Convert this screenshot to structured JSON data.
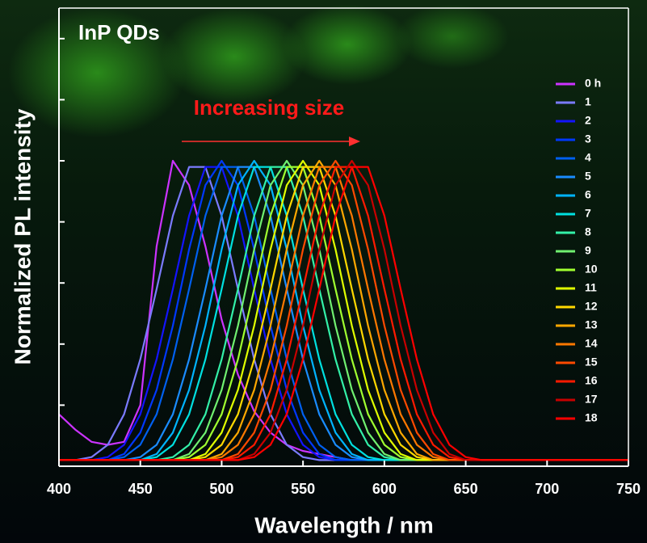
{
  "chart_data": {
    "type": "line",
    "title": "InP QDs",
    "annotation": "Increasing size",
    "x_label": "Wavelength / nm",
    "y_label": "Normalized PL intensity",
    "xlim": [
      400,
      750
    ],
    "xticks": [
      400,
      450,
      500,
      550,
      600,
      650,
      700,
      750
    ],
    "ylim": [
      0,
      1.5
    ],
    "yticks": [
      0,
      0.2,
      0.4,
      0.6,
      0.8,
      1.0,
      1.2,
      1.4
    ],
    "x": [
      400,
      410,
      420,
      430,
      440,
      450,
      460,
      470,
      480,
      490,
      500,
      510,
      520,
      530,
      540,
      550,
      560,
      570,
      580,
      590,
      600,
      610,
      620,
      630,
      640,
      650,
      660,
      670,
      680,
      690,
      700,
      710,
      720,
      730,
      740,
      750
    ],
    "series": [
      {
        "name": "0 h",
        "color": "#cc33ff",
        "values": [
          0.17,
          0.12,
          0.08,
          0.07,
          0.08,
          0.2,
          0.72,
          1,
          0.92,
          0.72,
          0.48,
          0.3,
          0.18,
          0.11,
          0.07,
          0.05,
          0.04,
          0.03,
          0.02,
          0.02,
          0.02,
          0.02,
          0.02,
          0.02,
          0.02,
          0.02,
          0.02,
          0.02,
          0.02,
          0.02,
          0.02,
          0.02,
          0.02,
          0.02,
          0.02,
          0.02
        ]
      },
      {
        "name": "1",
        "color": "#7b7bff",
        "values": [
          0.02,
          0.02,
          0.03,
          0.07,
          0.17,
          0.35,
          0.58,
          0.82,
          0.98,
          0.98,
          0.82,
          0.58,
          0.35,
          0.17,
          0.07,
          0.03,
          0.02,
          0.02,
          0.02,
          0.02,
          0.02,
          0.02,
          0.02,
          0.02,
          0.02,
          0.02,
          0.02,
          0.02,
          0.02,
          0.02,
          0.02,
          0.02,
          0.02,
          0.02,
          0.02,
          0.02
        ]
      },
      {
        "name": "2",
        "color": "#1414ff",
        "values": [
          0.02,
          0.02,
          0.02,
          0.03,
          0.07,
          0.17,
          0.35,
          0.58,
          0.82,
          0.98,
          0.98,
          0.82,
          0.58,
          0.35,
          0.17,
          0.07,
          0.03,
          0.02,
          0.02,
          0.02,
          0.02,
          0.02,
          0.02,
          0.02,
          0.02,
          0.02,
          0.02,
          0.02,
          0.02,
          0.02,
          0.02,
          0.02,
          0.02,
          0.02,
          0.02,
          0.02
        ]
      },
      {
        "name": "3",
        "color": "#0038ff",
        "values": [
          0.02,
          0.02,
          0.02,
          0.02,
          0.04,
          0.11,
          0.25,
          0.46,
          0.71,
          0.92,
          1,
          0.92,
          0.71,
          0.46,
          0.25,
          0.11,
          0.04,
          0.02,
          0.02,
          0.02,
          0.02,
          0.02,
          0.02,
          0.02,
          0.02,
          0.02,
          0.02,
          0.02,
          0.02,
          0.02,
          0.02,
          0.02,
          0.02,
          0.02,
          0.02,
          0.02
        ]
      },
      {
        "name": "4",
        "color": "#0060f0",
        "values": [
          0.02,
          0.02,
          0.02,
          0.02,
          0.03,
          0.07,
          0.17,
          0.35,
          0.58,
          0.82,
          0.98,
          0.98,
          0.82,
          0.58,
          0.35,
          0.17,
          0.07,
          0.03,
          0.02,
          0.02,
          0.02,
          0.02,
          0.02,
          0.02,
          0.02,
          0.02,
          0.02,
          0.02,
          0.02,
          0.02,
          0.02,
          0.02,
          0.02,
          0.02,
          0.02,
          0.02
        ]
      },
      {
        "name": "5",
        "color": "#1a8cff",
        "values": [
          0.02,
          0.02,
          0.02,
          0.02,
          0.02,
          0.03,
          0.07,
          0.17,
          0.35,
          0.58,
          0.82,
          0.98,
          0.98,
          0.82,
          0.58,
          0.35,
          0.17,
          0.07,
          0.03,
          0.02,
          0.02,
          0.02,
          0.02,
          0.02,
          0.02,
          0.02,
          0.02,
          0.02,
          0.02,
          0.02,
          0.02,
          0.02,
          0.02,
          0.02,
          0.02,
          0.02
        ]
      },
      {
        "name": "6",
        "color": "#00b4ff",
        "values": [
          0.02,
          0.02,
          0.02,
          0.02,
          0.02,
          0.02,
          0.04,
          0.11,
          0.25,
          0.46,
          0.71,
          0.92,
          1,
          0.92,
          0.71,
          0.46,
          0.25,
          0.11,
          0.04,
          0.02,
          0.02,
          0.02,
          0.02,
          0.02,
          0.02,
          0.02,
          0.02,
          0.02,
          0.02,
          0.02,
          0.02,
          0.02,
          0.02,
          0.02,
          0.02,
          0.02
        ]
      },
      {
        "name": "7",
        "color": "#00e0e0",
        "values": [
          0.02,
          0.02,
          0.02,
          0.02,
          0.02,
          0.02,
          0.03,
          0.07,
          0.17,
          0.35,
          0.58,
          0.82,
          0.98,
          0.98,
          0.82,
          0.58,
          0.35,
          0.17,
          0.07,
          0.03,
          0.02,
          0.02,
          0.02,
          0.02,
          0.02,
          0.02,
          0.02,
          0.02,
          0.02,
          0.02,
          0.02,
          0.02,
          0.02,
          0.02,
          0.02,
          0.02
        ]
      },
      {
        "name": "8",
        "color": "#33f0a8",
        "values": [
          0.02,
          0.02,
          0.02,
          0.02,
          0.02,
          0.02,
          0.02,
          0.03,
          0.07,
          0.17,
          0.35,
          0.58,
          0.82,
          0.98,
          0.98,
          0.82,
          0.58,
          0.35,
          0.17,
          0.07,
          0.03,
          0.02,
          0.02,
          0.02,
          0.02,
          0.02,
          0.02,
          0.02,
          0.02,
          0.02,
          0.02,
          0.02,
          0.02,
          0.02,
          0.02,
          0.02
        ]
      },
      {
        "name": "9",
        "color": "#70f070",
        "values": [
          0.02,
          0.02,
          0.02,
          0.02,
          0.02,
          0.02,
          0.02,
          0.02,
          0.04,
          0.11,
          0.25,
          0.46,
          0.71,
          0.92,
          1,
          0.92,
          0.71,
          0.46,
          0.25,
          0.11,
          0.04,
          0.02,
          0.02,
          0.02,
          0.02,
          0.02,
          0.02,
          0.02,
          0.02,
          0.02,
          0.02,
          0.02,
          0.02,
          0.02,
          0.02,
          0.02
        ]
      },
      {
        "name": "10",
        "color": "#a0ff30",
        "values": [
          0.02,
          0.02,
          0.02,
          0.02,
          0.02,
          0.02,
          0.02,
          0.02,
          0.03,
          0.07,
          0.17,
          0.35,
          0.58,
          0.82,
          0.98,
          0.98,
          0.82,
          0.58,
          0.35,
          0.17,
          0.07,
          0.03,
          0.02,
          0.02,
          0.02,
          0.02,
          0.02,
          0.02,
          0.02,
          0.02,
          0.02,
          0.02,
          0.02,
          0.02,
          0.02,
          0.02
        ]
      },
      {
        "name": "11",
        "color": "#e0ff00",
        "values": [
          0.02,
          0.02,
          0.02,
          0.02,
          0.02,
          0.02,
          0.02,
          0.02,
          0.02,
          0.04,
          0.11,
          0.25,
          0.46,
          0.71,
          0.92,
          1,
          0.92,
          0.71,
          0.46,
          0.25,
          0.11,
          0.04,
          0.02,
          0.02,
          0.02,
          0.02,
          0.02,
          0.02,
          0.02,
          0.02,
          0.02,
          0.02,
          0.02,
          0.02,
          0.02,
          0.02
        ]
      },
      {
        "name": "12",
        "color": "#ffd800",
        "values": [
          0.02,
          0.02,
          0.02,
          0.02,
          0.02,
          0.02,
          0.02,
          0.02,
          0.02,
          0.03,
          0.07,
          0.17,
          0.35,
          0.58,
          0.82,
          0.98,
          0.98,
          0.82,
          0.58,
          0.35,
          0.17,
          0.07,
          0.03,
          0.02,
          0.02,
          0.02,
          0.02,
          0.02,
          0.02,
          0.02,
          0.02,
          0.02,
          0.02,
          0.02,
          0.02,
          0.02
        ]
      },
      {
        "name": "13",
        "color": "#ffa800",
        "values": [
          0.02,
          0.02,
          0.02,
          0.02,
          0.02,
          0.02,
          0.02,
          0.02,
          0.02,
          0.02,
          0.04,
          0.11,
          0.25,
          0.46,
          0.71,
          0.92,
          1,
          0.92,
          0.71,
          0.46,
          0.25,
          0.11,
          0.04,
          0.02,
          0.02,
          0.02,
          0.02,
          0.02,
          0.02,
          0.02,
          0.02,
          0.02,
          0.02,
          0.02,
          0.02,
          0.02
        ]
      },
      {
        "name": "14",
        "color": "#ff7800",
        "values": [
          0.02,
          0.02,
          0.02,
          0.02,
          0.02,
          0.02,
          0.02,
          0.02,
          0.02,
          0.02,
          0.03,
          0.07,
          0.17,
          0.35,
          0.58,
          0.82,
          0.98,
          0.98,
          0.82,
          0.58,
          0.35,
          0.17,
          0.07,
          0.03,
          0.02,
          0.02,
          0.02,
          0.02,
          0.02,
          0.02,
          0.02,
          0.02,
          0.02,
          0.02,
          0.02,
          0.02
        ]
      },
      {
        "name": "15",
        "color": "#ff4a00",
        "values": [
          0.02,
          0.02,
          0.02,
          0.02,
          0.02,
          0.02,
          0.02,
          0.02,
          0.02,
          0.02,
          0.02,
          0.04,
          0.11,
          0.25,
          0.46,
          0.71,
          0.92,
          1,
          0.92,
          0.71,
          0.46,
          0.25,
          0.11,
          0.04,
          0.02,
          0.02,
          0.02,
          0.02,
          0.02,
          0.02,
          0.02,
          0.02,
          0.02,
          0.02,
          0.02,
          0.02
        ]
      },
      {
        "name": "16",
        "color": "#ff1a00",
        "values": [
          0.02,
          0.02,
          0.02,
          0.02,
          0.02,
          0.02,
          0.02,
          0.02,
          0.02,
          0.02,
          0.02,
          0.03,
          0.07,
          0.17,
          0.35,
          0.58,
          0.82,
          0.98,
          0.98,
          0.82,
          0.58,
          0.35,
          0.17,
          0.07,
          0.03,
          0.02,
          0.02,
          0.02,
          0.02,
          0.02,
          0.02,
          0.02,
          0.02,
          0.02,
          0.02,
          0.02
        ]
      },
      {
        "name": "17",
        "color": "#c80000",
        "values": [
          0.02,
          0.02,
          0.02,
          0.02,
          0.02,
          0.02,
          0.02,
          0.02,
          0.02,
          0.02,
          0.02,
          0.02,
          0.04,
          0.11,
          0.25,
          0.46,
          0.71,
          0.92,
          1,
          0.92,
          0.71,
          0.46,
          0.25,
          0.11,
          0.04,
          0.02,
          0.02,
          0.02,
          0.02,
          0.02,
          0.02,
          0.02,
          0.02,
          0.02,
          0.02,
          0.02
        ]
      },
      {
        "name": "18",
        "color": "#ff0000",
        "values": [
          0.02,
          0.02,
          0.02,
          0.02,
          0.02,
          0.02,
          0.02,
          0.02,
          0.02,
          0.02,
          0.02,
          0.02,
          0.03,
          0.07,
          0.17,
          0.35,
          0.58,
          0.82,
          0.98,
          0.98,
          0.82,
          0.58,
          0.35,
          0.17,
          0.07,
          0.03,
          0.02,
          0.02,
          0.02,
          0.02,
          0.02,
          0.02,
          0.02,
          0.02,
          0.02,
          0.02
        ]
      }
    ]
  }
}
